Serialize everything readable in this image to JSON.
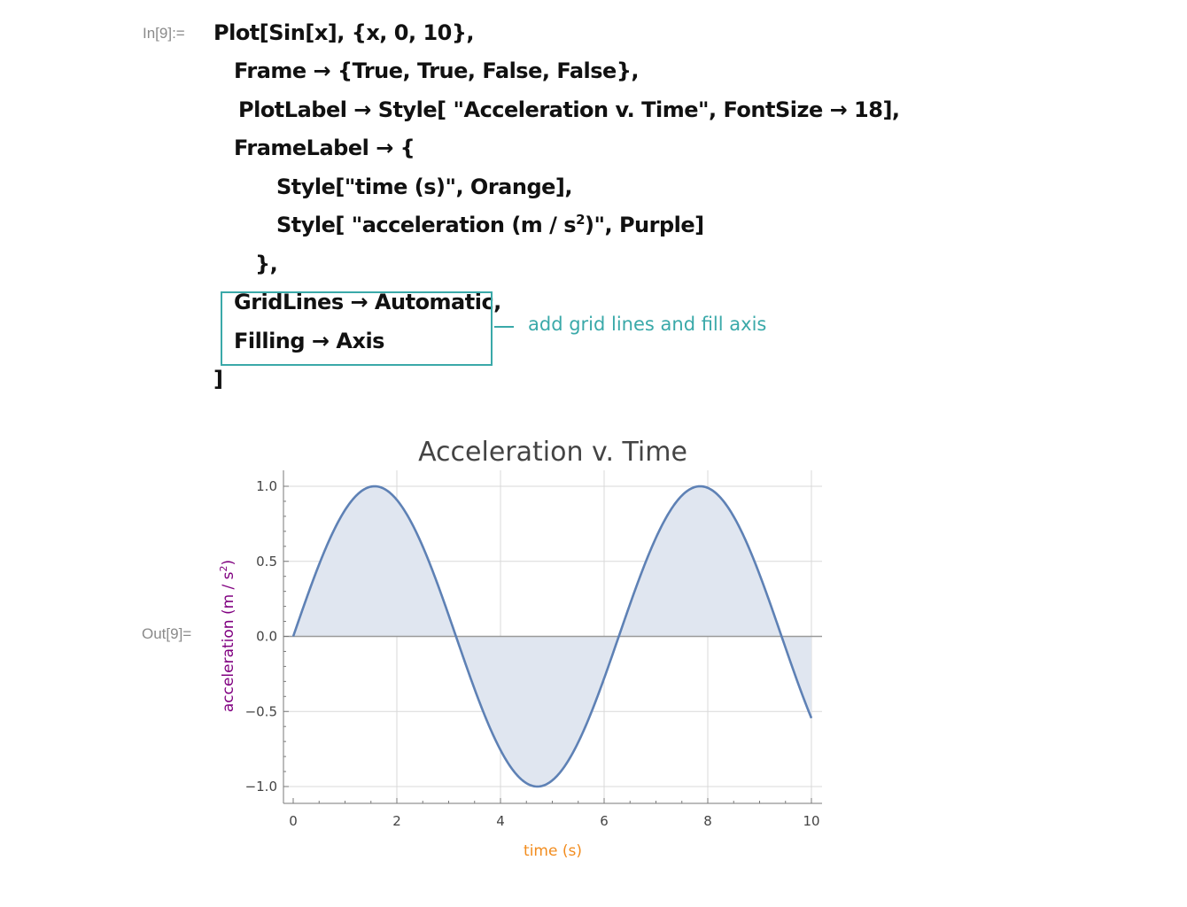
{
  "input_label": "In[9]:=",
  "output_label": "Out[9]=",
  "code": {
    "line1": "Plot[Sin[x],  {x,  0,  10},",
    "line2": "Frame → {True, True, False, False},",
    "line3": "PlotLabel  →  Style[ \"Acceleration v. Time\", FontSize → 18],",
    "line4": "FrameLabel → {",
    "line5": "Style[\"time (s)\", Orange],",
    "line6_pre": "Style[ \"acceleration (m / s",
    "line6_sup": "2",
    "line6_post": ")\", Purple]",
    "line7": "},",
    "line8": "GridLines → Automatic,",
    "line9": "Filling → Axis",
    "line10": "]"
  },
  "annotation": "add grid lines and fill axis",
  "colors": {
    "accent_teal": "#3aa9a9",
    "curve": "#5e81b5",
    "fill": "#e0e6f0",
    "xlabel": "#f28c1e",
    "ylabel": "#800080"
  },
  "chart_data": {
    "type": "line",
    "title": "Acceleration v. Time",
    "xlabel": "time (s)",
    "ylabel_pre": "acceleration (m / s",
    "ylabel_sup": "2",
    "ylabel_post": ")",
    "function": "sin(x)",
    "xlim": [
      0,
      10
    ],
    "ylim": [
      -1,
      1
    ],
    "x_ticks": [
      0,
      2,
      4,
      6,
      8,
      10
    ],
    "x_tick_labels": [
      "0",
      "2",
      "4",
      "6",
      "8",
      "10"
    ],
    "y_ticks": [
      1.0,
      0.5,
      0.0,
      -0.5,
      -1.0
    ],
    "y_tick_labels": [
      "1.0",
      "0.5",
      "0.0",
      "−0.5",
      "−1.0"
    ],
    "grid": true,
    "filling": "axis",
    "series": [
      {
        "x": [
          0,
          0.5,
          1,
          1.5,
          1.5708,
          2,
          2.5,
          3,
          3.1416,
          3.5,
          4,
          4.5,
          4.7124,
          5,
          5.5,
          6,
          6.2832,
          6.5,
          7,
          7.5,
          7.854,
          8,
          8.5,
          9,
          9.4248,
          9.5,
          10
        ],
        "y": [
          0,
          0.479,
          0.841,
          0.997,
          1.0,
          0.909,
          0.598,
          0.141,
          0,
          -0.351,
          -0.757,
          -0.977,
          -1.0,
          -0.959,
          -0.706,
          -0.279,
          0,
          0.215,
          0.657,
          0.938,
          1.0,
          0.989,
          0.798,
          0.412,
          0,
          -0.075,
          -0.544
        ]
      }
    ]
  }
}
